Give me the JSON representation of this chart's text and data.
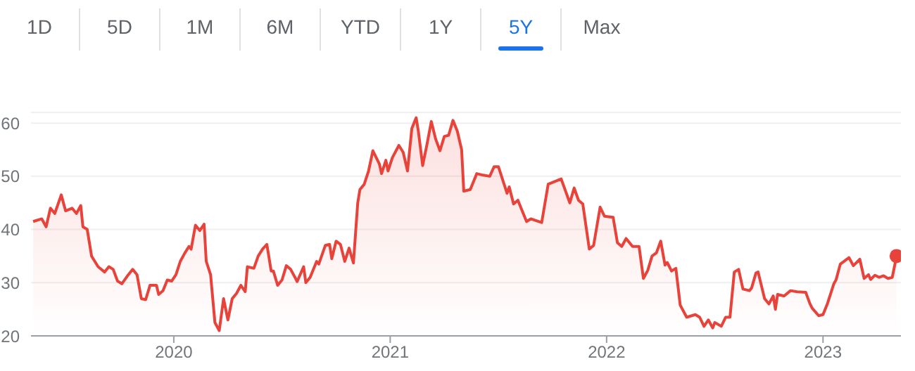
{
  "chart_data": {
    "type": "area",
    "annotations": [
      "1D",
      "5D",
      "1M",
      "6M",
      "YTD",
      "1Y",
      "5Y",
      "Max"
    ],
    "xlim": [
      2019.34,
      2023.36
    ],
    "xticks": [
      2020,
      2021,
      2022,
      2023
    ],
    "ylim": [
      20,
      62
    ],
    "yticks": [
      20,
      30,
      40,
      50,
      60
    ],
    "grid": "y",
    "marker": "none",
    "series": [
      {
        "color": "#e8433a",
        "x": [
          2019.35,
          2019.39,
          2019.41,
          2019.43,
          2019.45,
          2019.48,
          2019.5,
          2019.53,
          2019.55,
          2019.57,
          2019.58,
          2019.6,
          2019.62,
          2019.65,
          2019.68,
          2019.7,
          2019.72,
          2019.74,
          2019.76,
          2019.79,
          2019.81,
          2019.83,
          2019.85,
          2019.87,
          2019.89,
          2019.92,
          2019.93,
          2019.95,
          2019.97,
          2019.99,
          2020.01,
          2020.03,
          2020.05,
          2020.07,
          2020.08,
          2020.1,
          2020.12,
          2020.14,
          2020.15,
          2020.17,
          2020.19,
          2020.21,
          2020.23,
          2020.25,
          2020.27,
          2020.29,
          2020.31,
          2020.33,
          2020.34,
          2020.37,
          2020.39,
          2020.41,
          2020.43,
          2020.45,
          2020.46,
          2020.48,
          2020.5,
          2020.52,
          2020.54,
          2020.56,
          2020.57,
          2020.6,
          2020.61,
          2020.63,
          2020.66,
          2020.67,
          2020.7,
          2020.72,
          2020.73,
          2020.75,
          2020.77,
          2020.79,
          2020.81,
          2020.83,
          2020.85,
          2020.86,
          2020.88,
          2020.9,
          2020.92,
          2020.95,
          2020.96,
          2020.98,
          2020.99,
          2021.01,
          2021.04,
          2021.06,
          2021.08,
          2021.1,
          2021.12,
          2021.13,
          2021.15,
          2021.17,
          2021.19,
          2021.21,
          2021.23,
          2021.25,
          2021.27,
          2021.29,
          2021.31,
          2021.33,
          2021.34,
          2021.37,
          2021.4,
          2021.43,
          2021.46,
          2021.48,
          2021.5,
          2021.54,
          2021.55,
          2021.57,
          2021.59,
          2021.63,
          2021.65,
          2021.7,
          2021.73,
          2021.79,
          2021.83,
          2021.85,
          2021.87,
          2021.89,
          2021.92,
          2021.94,
          2021.97,
          2021.99,
          2022.03,
          2022.05,
          2022.07,
          2022.09,
          2022.12,
          2022.15,
          2022.17,
          2022.19,
          2022.21,
          2022.23,
          2022.25,
          2022.27,
          2022.28,
          2022.3,
          2022.32,
          2022.34,
          2022.37,
          2022.41,
          2022.43,
          2022.45,
          2022.47,
          2022.49,
          2022.5,
          2022.53,
          2022.55,
          2022.57,
          2022.59,
          2022.61,
          2022.63,
          2022.66,
          2022.67,
          2022.69,
          2022.7,
          2022.73,
          2022.75,
          2022.77,
          2022.78,
          2022.79,
          2022.82,
          2022.85,
          2022.88,
          2022.92,
          2022.94,
          2022.95,
          2022.98,
          2023.0,
          2023.02,
          2023.05,
          2023.06,
          2023.08,
          2023.12,
          2023.14,
          2023.17,
          2023.19,
          2023.21,
          2023.22,
          2023.24,
          2023.26,
          2023.28,
          2023.3,
          2023.32,
          2023.34
        ],
        "values": [
          41.5,
          42,
          40.5,
          44,
          43,
          46.5,
          43.5,
          44,
          43,
          44.5,
          40.5,
          40,
          35,
          33,
          32,
          33,
          32.5,
          30.3,
          29.8,
          31.5,
          32.5,
          31.5,
          27,
          26.8,
          29.5,
          29.5,
          27.8,
          28.5,
          30.5,
          30.3,
          31.5,
          34,
          35.5,
          36.8,
          36.3,
          40.8,
          39.8,
          41,
          34,
          31.5,
          22.5,
          21,
          27,
          23,
          27,
          28,
          29.5,
          28.3,
          33,
          32.7,
          35,
          36.3,
          37.2,
          32.2,
          32.2,
          29.5,
          30.5,
          33.2,
          32.5,
          31,
          30.2,
          33,
          30,
          31,
          34,
          33.5,
          37,
          37.2,
          34.5,
          37.8,
          37.2,
          34,
          36.5,
          33.7,
          45,
          47.5,
          48.5,
          51,
          54.8,
          52.3,
          50.5,
          53,
          51,
          53.5,
          55.8,
          54.5,
          51,
          59,
          61,
          58.5,
          52,
          56,
          60.3,
          57,
          54.8,
          57.5,
          57.7,
          60.5,
          58.5,
          55,
          47.2,
          47.5,
          50.5,
          50.2,
          50,
          51.8,
          51.8,
          46.8,
          48,
          44.8,
          45.5,
          41.5,
          42,
          41.3,
          48.5,
          49.5,
          45,
          47.8,
          45.5,
          44.8,
          36.3,
          37,
          44.2,
          42.5,
          42.3,
          37.5,
          36.8,
          38.3,
          36.8,
          36.8,
          30.8,
          32.3,
          35,
          35.6,
          37.8,
          33.3,
          33.8,
          32.2,
          32.7,
          25.8,
          23.5,
          24,
          23.5,
          21.8,
          23,
          21.5,
          22.5,
          21.8,
          23.5,
          23.5,
          32,
          32.5,
          28.8,
          28.5,
          29,
          31.8,
          32,
          27,
          26,
          27.5,
          25,
          27.8,
          27.5,
          28.5,
          28.3,
          28.2,
          26,
          25.2,
          23.8,
          24,
          26,
          29.8,
          30.5,
          33.5,
          34.7,
          33.2,
          34.4,
          30.8,
          31.5,
          30.6,
          31.4,
          31,
          31.3,
          30.8,
          31,
          35
        ]
      },
      {
        "type": "scatter",
        "marker": "circle",
        "color": "#e8433a",
        "x": [
          2023.34
        ],
        "values": [
          35
        ]
      }
    ]
  }
}
